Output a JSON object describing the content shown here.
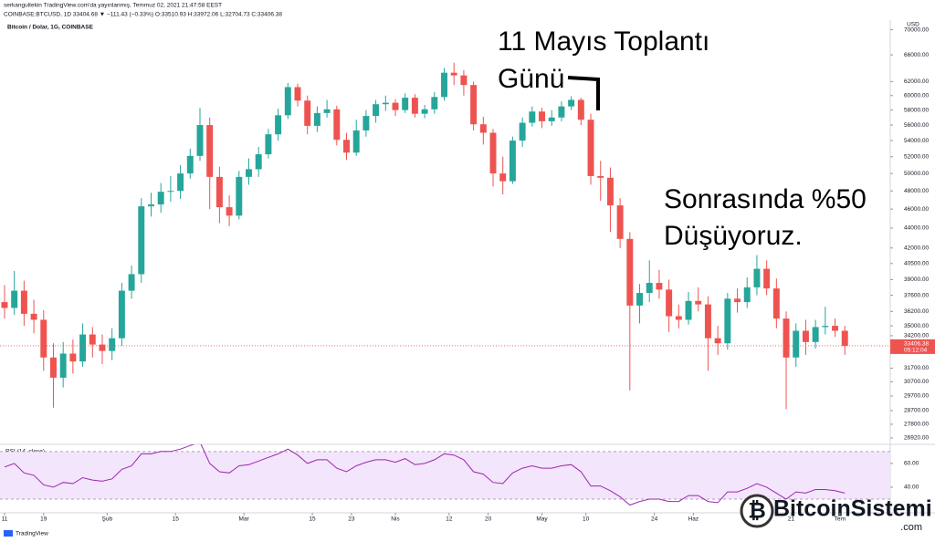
{
  "header": {
    "publisher": "serkangultekin TradingView.com'da yayınlanmış, Temmuz 02, 2021 21:47:58 EEST",
    "quote": "COINBASE:BTCUSD, 1D 33404.68 ▼ −111.43 (−0.33%) O:33510.93 H:33972.06 L:32704.73 C:33406.38"
  },
  "chart_data": {
    "type": "candlestick",
    "title": "Bitcoin / Dolar, 1G, COINBASE",
    "y_unit": "USD",
    "up_color": "#26a69a",
    "down_color": "#ef5350",
    "log_scale": true,
    "grid": false,
    "xlim": [
      -0.93,
      181.3
    ],
    "ylim": [
      26520,
      71600
    ],
    "xticks": [
      {
        "value": 0,
        "label": "11"
      },
      {
        "value": 8,
        "label": "19"
      },
      {
        "value": 21,
        "label": "Şub"
      },
      {
        "value": 35,
        "label": "15"
      },
      {
        "value": 49,
        "label": "Mar"
      },
      {
        "value": 63,
        "label": "15"
      },
      {
        "value": 71,
        "label": "23"
      },
      {
        "value": 80,
        "label": "Nis"
      },
      {
        "value": 91,
        "label": "12"
      },
      {
        "value": 99,
        "label": "20"
      },
      {
        "value": 110,
        "label": "May"
      },
      {
        "value": 119,
        "label": "10"
      },
      {
        "value": 133,
        "label": "24"
      },
      {
        "value": 141,
        "label": "Haz"
      },
      {
        "value": 161,
        "label": "21"
      },
      {
        "value": 171,
        "label": "Tem"
      }
    ],
    "yticks": [
      {
        "value": 70000,
        "label": "70000.00"
      },
      {
        "value": 66000,
        "label": "66000.00"
      },
      {
        "value": 62000,
        "label": "62000.00"
      },
      {
        "value": 60000,
        "label": "60000.00"
      },
      {
        "value": 58000,
        "label": "58000.00"
      },
      {
        "value": 56000,
        "label": "56000.00"
      },
      {
        "value": 54000,
        "label": "54000.00"
      },
      {
        "value": 52000,
        "label": "52000.00"
      },
      {
        "value": 50000,
        "label": "50000.00"
      },
      {
        "value": 48000,
        "label": "48000.00"
      },
      {
        "value": 46000,
        "label": "46000.00"
      },
      {
        "value": 44000,
        "label": "44000.00"
      },
      {
        "value": 42000,
        "label": "42000.00"
      },
      {
        "value": 40500,
        "label": "40500.00"
      },
      {
        "value": 39000,
        "label": "39000.00"
      },
      {
        "value": 37600,
        "label": "37600.00"
      },
      {
        "value": 36200,
        "label": "36200.00"
      },
      {
        "value": 35000,
        "label": "35000.00"
      },
      {
        "value": 34200,
        "label": "34200.00"
      },
      {
        "value": 31700,
        "label": "31700.00"
      },
      {
        "value": 30700,
        "label": "30700.00"
      },
      {
        "value": 29700,
        "label": "29700.00"
      },
      {
        "value": 28700,
        "label": "28700.00"
      },
      {
        "value": 27800,
        "label": "27800.00"
      },
      {
        "value": 26920,
        "label": "26920.00"
      }
    ],
    "last_price": {
      "value": 33406.38,
      "label": "33406.38"
    },
    "countdown": "05:12:04",
    "x": [
      0,
      2,
      4,
      6,
      8,
      10,
      12,
      14,
      16,
      18,
      20,
      22,
      24,
      26,
      28,
      30,
      32,
      34,
      36,
      38,
      40,
      42,
      44,
      46,
      48,
      50,
      52,
      54,
      56,
      58,
      60,
      62,
      64,
      66,
      68,
      70,
      72,
      74,
      76,
      78,
      80,
      82,
      84,
      86,
      88,
      90,
      92,
      94,
      96,
      98,
      100,
      102,
      104,
      106,
      108,
      110,
      112,
      114,
      116,
      118,
      120,
      122,
      124,
      126,
      128,
      130,
      132,
      134,
      136,
      138,
      140,
      142,
      144,
      146,
      148,
      150,
      152,
      154,
      156,
      158,
      160,
      162,
      164,
      166,
      168,
      170,
      172
    ],
    "open": [
      37000,
      36500,
      38000,
      36000,
      35500,
      32500,
      31000,
      32800,
      32200,
      34300,
      33500,
      33000,
      34000,
      38000,
      39500,
      46300,
      46500,
      47900,
      48000,
      50000,
      52100,
      56000,
      49600,
      46200,
      45300,
      49600,
      50500,
      52300,
      54800,
      57300,
      61200,
      59300,
      55900,
      57600,
      58100,
      54100,
      52500,
      55300,
      57200,
      58800,
      59000,
      58000,
      59700,
      57500,
      58100,
      59800,
      63300,
      62900,
      61500,
      56100,
      55000,
      50000,
      49100,
      54000,
      56300,
      57800,
      56500,
      57000,
      58500,
      59400,
      56700,
      49700,
      49500,
      46400,
      42900,
      36700,
      37800,
      38700,
      38100,
      35800,
      35500,
      37100,
      36800,
      34000,
      33600,
      37300,
      37000,
      38300,
      40000,
      38200,
      35600,
      32500,
      34600,
      33700,
      34900,
      35000,
      34600
    ],
    "high": [
      38500,
      39800,
      38900,
      37200,
      36300,
      33600,
      33700,
      33900,
      35200,
      34900,
      34300,
      34800,
      38700,
      40300,
      47200,
      47800,
      48900,
      49700,
      51000,
      53000,
      58300,
      57000,
      50800,
      47500,
      50300,
      51800,
      53200,
      55500,
      58200,
      61800,
      61700,
      60000,
      58500,
      59400,
      58600,
      55000,
      56700,
      58000,
      59400,
      60000,
      59500,
      60300,
      60200,
      58700,
      60500,
      64000,
      64800,
      63700,
      62000,
      57100,
      55500,
      52000,
      54500,
      57000,
      58500,
      58300,
      58000,
      59200,
      59900,
      59700,
      57500,
      51500,
      50700,
      47200,
      43600,
      38600,
      40800,
      39900,
      39000,
      36800,
      37900,
      38300,
      37500,
      35000,
      37800,
      38200,
      39200,
      41300,
      40800,
      39100,
      36200,
      35200,
      35500,
      35500,
      36600,
      35600,
      35000
    ],
    "low": [
      35600,
      35900,
      35000,
      34400,
      31500,
      28900,
      30300,
      31300,
      31800,
      32500,
      32000,
      32300,
      33400,
      37300,
      38700,
      45200,
      45600,
      46800,
      47100,
      49400,
      51500,
      46000,
      44500,
      44200,
      44900,
      48700,
      49600,
      51800,
      54000,
      56800,
      58500,
      54800,
      55100,
      57000,
      53400,
      51600,
      52100,
      54500,
      56300,
      57900,
      57200,
      57600,
      57000,
      56900,
      57500,
      59300,
      61500,
      60000,
      55300,
      53500,
      48500,
      47600,
      48800,
      53200,
      55800,
      55600,
      55900,
      56500,
      58000,
      56000,
      48700,
      46900,
      43600,
      42000,
      30100,
      35200,
      37000,
      37300,
      34500,
      34800,
      35100,
      36200,
      31500,
      32700,
      33100,
      36100,
      36500,
      37600,
      37600,
      34800,
      28800,
      31800,
      32700,
      33200,
      34300,
      34100,
      32700
    ],
    "close": [
      36500,
      38000,
      36000,
      35500,
      32500,
      31000,
      32800,
      32200,
      34300,
      33500,
      33000,
      34000,
      38000,
      39500,
      46300,
      46500,
      47900,
      48000,
      50000,
      52100,
      56000,
      49600,
      46200,
      45300,
      49600,
      50500,
      52300,
      54800,
      57300,
      61200,
      59300,
      55900,
      57600,
      58100,
      54100,
      52500,
      55300,
      57200,
      58800,
      59000,
      58000,
      59700,
      57500,
      58100,
      59800,
      63300,
      62900,
      61500,
      56100,
      55000,
      50000,
      49100,
      54000,
      56300,
      57800,
      56500,
      57000,
      58500,
      59400,
      56700,
      49700,
      49500,
      46400,
      42900,
      36700,
      37800,
      38700,
      38100,
      35800,
      35500,
      37100,
      36800,
      34000,
      33600,
      37300,
      37000,
      38300,
      40000,
      38200,
      35600,
      32500,
      34600,
      33700,
      34900,
      35000,
      34600,
      33400
    ],
    "rsi": {
      "title": "RSI (14, close)",
      "color": "#9c27b0",
      "band": [
        30,
        70
      ],
      "band_color": "#f3e5fb",
      "ylim": [
        20,
        76
      ],
      "yticks": [
        {
          "value": 60,
          "label": "60.00"
        },
        {
          "value": 40,
          "label": "40.00"
        }
      ],
      "values": [
        57,
        60,
        52,
        50,
        42,
        40,
        44,
        43,
        48,
        46,
        45,
        47,
        55,
        58,
        68,
        68,
        70,
        70,
        72,
        75,
        78,
        60,
        53,
        52,
        58,
        59,
        62,
        65,
        68,
        72,
        67,
        60,
        63,
        63,
        56,
        53,
        58,
        61,
        63,
        63,
        61,
        64,
        59,
        60,
        63,
        68,
        67,
        63,
        53,
        51,
        44,
        43,
        52,
        56,
        58,
        56,
        56,
        58,
        59,
        53,
        41,
        41,
        37,
        32,
        25,
        28,
        30,
        30,
        28,
        28,
        33,
        33,
        28,
        27,
        36,
        36,
        39,
        43,
        40,
        35,
        30,
        36,
        35,
        38,
        38,
        37,
        35
      ]
    }
  },
  "annotations": [
    {
      "lines": [
        "11 Mayıs Toplantı",
        "Günü"
      ]
    },
    {
      "lines": [
        "Sonrasında %50",
        "Düşüyoruz."
      ]
    }
  ],
  "footer": {
    "logo": "TradingView",
    "watermark": "BitcoinSistemi",
    "watermark_suffix": ".com"
  }
}
